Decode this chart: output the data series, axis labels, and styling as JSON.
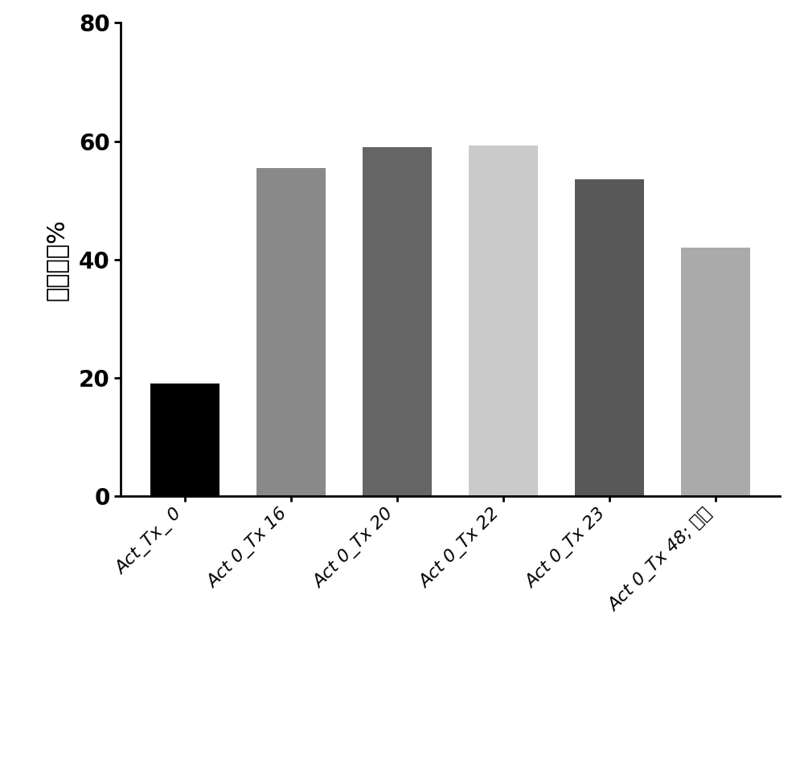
{
  "categories": [
    "Act_Tx_ 0",
    "Act 0_Tx 16",
    "Act 0_Tx 20",
    "Act 0_Tx 22",
    "Act 0_Tx 23",
    "Act 0_Tx 48; 对照"
  ],
  "values": [
    19.0,
    55.5,
    59.0,
    59.2,
    53.5,
    42.0
  ],
  "bar_colors": [
    "#000000",
    "#898989",
    "#656565",
    "#cacaca",
    "#585858",
    "#aaaaaa"
  ],
  "ylabel": "转导效率%",
  "ylim": [
    0,
    80
  ],
  "yticks": [
    0,
    20,
    40,
    60,
    80
  ],
  "background_color": "#ffffff",
  "bar_width": 0.65,
  "ylabel_fontsize": 22,
  "tick_fontsize": 20,
  "xtick_fontsize": 16
}
